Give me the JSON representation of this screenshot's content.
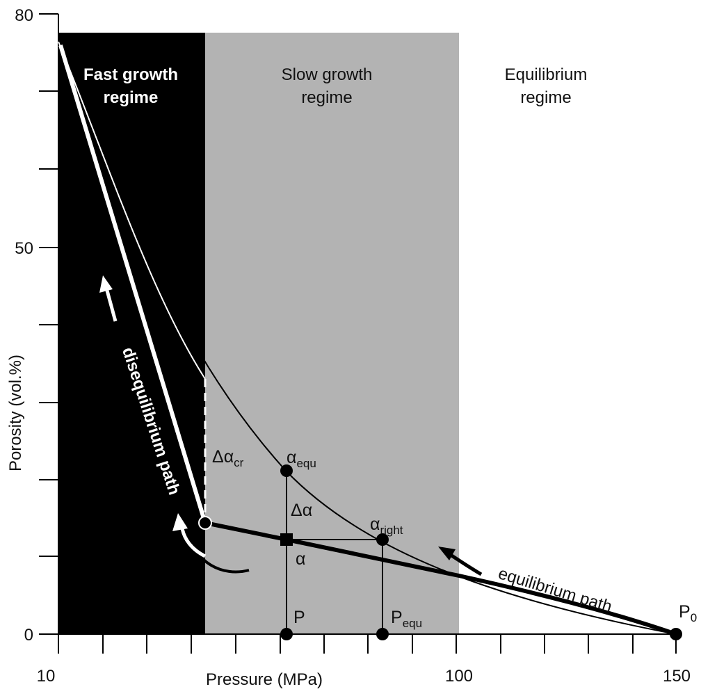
{
  "colors": {
    "fast_region": "#000000",
    "slow_region": "#b3b3b3",
    "equilibrium_region": "#ffffff",
    "curve": "#000000",
    "path_light": "#ffffff"
  },
  "regions": {
    "fast": {
      "line1": "Fast growth",
      "line2": "regime"
    },
    "slow": {
      "line1": "Slow growth",
      "line2": "regime"
    },
    "equilibrium": {
      "line1": "Equilibrium",
      "line2": "regime"
    }
  },
  "axes": {
    "y_title": "Porosity (vol.%)",
    "x_title": "Pressure (MPa)",
    "y_ticks": [
      "80",
      "50",
      "0"
    ],
    "x_ticks": [
      "10",
      "100",
      "150"
    ]
  },
  "labels": {
    "alpha_equ": {
      "main": "α",
      "sub": "equ"
    },
    "alpha_right": {
      "main": "α",
      "sub": "right"
    },
    "delta_alpha_cr": {
      "main": "Δα",
      "sub": "cr"
    },
    "delta_alpha": "Δα",
    "alpha": "α",
    "p": "P",
    "p_equ": {
      "main": "P",
      "sub": "equ"
    },
    "p0": {
      "main": "P",
      "sub": "0"
    },
    "disequilibrium_path": "disequilibrium path",
    "equilibrium_path": "equilibrium path"
  },
  "icons": [
    "arrow-up-icon",
    "curved-arrow-icon",
    "arrow-left-icon",
    "dot-marker-icon",
    "square-marker-icon"
  ]
}
